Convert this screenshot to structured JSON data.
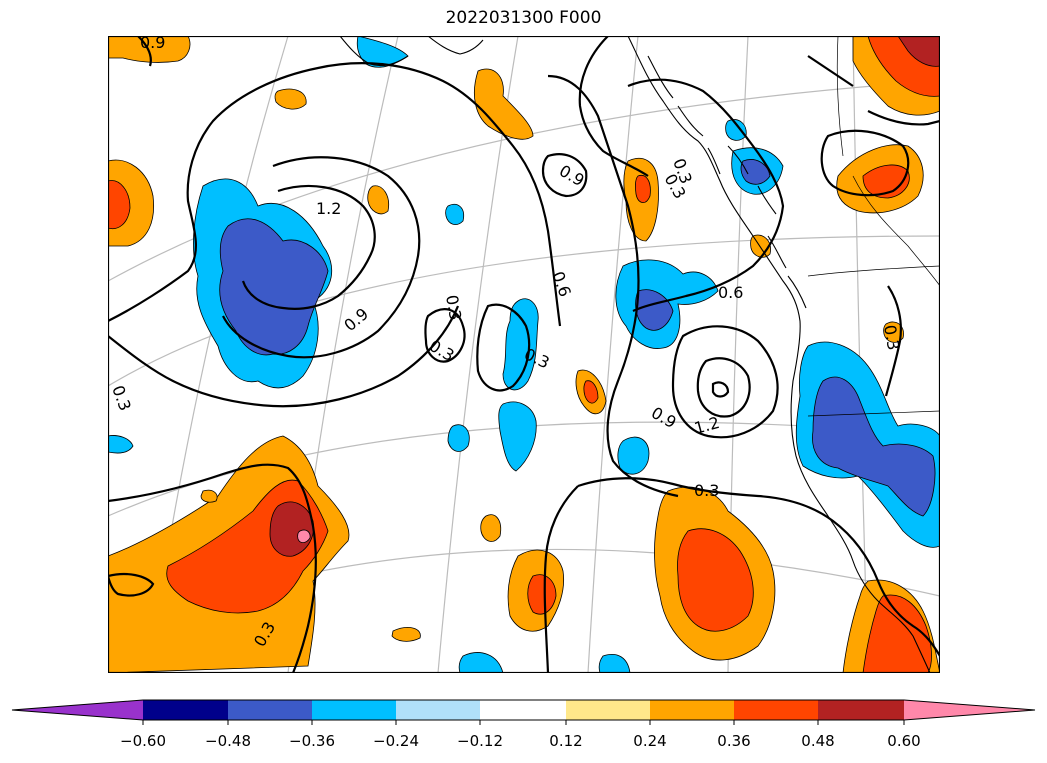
{
  "title": "2022031300 F000",
  "colorbar": {
    "ticks": [
      "−0.60",
      "−0.48",
      "−0.36",
      "−0.24",
      "−0.12",
      "0.12",
      "0.24",
      "0.36",
      "0.48",
      "0.60"
    ],
    "under_color": "#9932cc",
    "over_color": "#ff88aa",
    "colors": [
      "#00008b",
      "#3c5ac8",
      "#00bfff",
      "#b0e0fa",
      "#ffffff",
      "#ffe88a",
      "#ffa500",
      "#ff4500",
      "#b22222"
    ]
  },
  "contours": {
    "labels": [
      "0.9",
      "1.2",
      "0.3",
      "0.9",
      "0.3",
      "0.3",
      "0.9",
      "0.6",
      "0.3",
      "0.6",
      "0.3",
      "0.3",
      "0.9",
      "1.2",
      "0.3",
      "0.3",
      "0.3"
    ]
  },
  "legend_colors": {
    "blue_dark": "#3c5ac8",
    "blue_light": "#00bfff",
    "orange": "#ffa500",
    "red_orange": "#ff4500",
    "dark_red": "#b22222",
    "pink": "#ff88aa"
  }
}
